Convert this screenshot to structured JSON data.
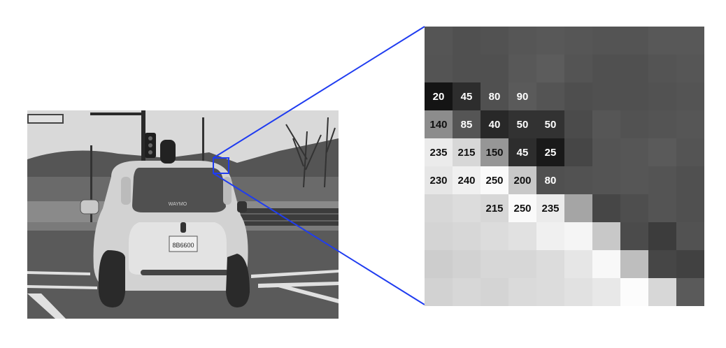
{
  "colors": {
    "highlight": "#1f3cf0",
    "value_text_dark": "#111111",
    "value_text_light": "#ffffff"
  },
  "photo": {
    "description_icon": "self-driving-car-photo",
    "plate_text": "8B6600",
    "brand_text": "WAYMO"
  },
  "zoom_grid": {
    "rows": [
      [
        {
          "g": 85
        },
        {
          "g": 80
        },
        {
          "g": 82
        },
        {
          "g": 86
        },
        {
          "g": 88
        },
        {
          "g": 86
        },
        {
          "g": 84
        },
        {
          "g": 84
        },
        {
          "g": 88
        },
        {
          "g": 88
        }
      ],
      [
        {
          "g": 84
        },
        {
          "g": 80
        },
        {
          "g": 80
        },
        {
          "g": 88
        },
        {
          "g": 92
        },
        {
          "g": 84
        },
        {
          "g": 80
        },
        {
          "g": 80
        },
        {
          "g": 84
        },
        {
          "g": 86
        }
      ],
      [
        {
          "g": 20,
          "v": "20"
        },
        {
          "g": 45,
          "v": "45"
        },
        {
          "g": 80,
          "v": "80"
        },
        {
          "g": 90,
          "v": "90"
        },
        {
          "g": 84
        },
        {
          "g": 78
        },
        {
          "g": 80
        },
        {
          "g": 80
        },
        {
          "g": 82
        },
        {
          "g": 84
        }
      ],
      [
        {
          "g": 140,
          "v": "140"
        },
        {
          "g": 85,
          "v": "85"
        },
        {
          "g": 40,
          "v": "40"
        },
        {
          "g": 50,
          "v": "50"
        },
        {
          "g": 50,
          "v": "50"
        },
        {
          "g": 75
        },
        {
          "g": 86
        },
        {
          "g": 82
        },
        {
          "g": 84
        },
        {
          "g": 86
        }
      ],
      [
        {
          "g": 235,
          "v": "235"
        },
        {
          "g": 215,
          "v": "215"
        },
        {
          "g": 150,
          "v": "150"
        },
        {
          "g": 45,
          "v": "45"
        },
        {
          "g": 25,
          "v": "25"
        },
        {
          "g": 70
        },
        {
          "g": 84
        },
        {
          "g": 86
        },
        {
          "g": 90
        },
        {
          "g": 84
        }
      ],
      [
        {
          "g": 230,
          "v": "230"
        },
        {
          "g": 240,
          "v": "240"
        },
        {
          "g": 250,
          "v": "250"
        },
        {
          "g": 200,
          "v": "200"
        },
        {
          "g": 80,
          "v": "80"
        },
        {
          "g": 82
        },
        {
          "g": 84
        },
        {
          "g": 86
        },
        {
          "g": 84
        },
        {
          "g": 80
        }
      ],
      [
        {
          "g": 215
        },
        {
          "g": 220
        },
        {
          "g": 215,
          "v": "215"
        },
        {
          "g": 250,
          "v": "250"
        },
        {
          "g": 235,
          "v": "235"
        },
        {
          "g": 165
        },
        {
          "g": 70
        },
        {
          "g": 78
        },
        {
          "g": 84
        },
        {
          "g": 80
        }
      ],
      [
        {
          "g": 212
        },
        {
          "g": 215
        },
        {
          "g": 220
        },
        {
          "g": 225
        },
        {
          "g": 240
        },
        {
          "g": 245
        },
        {
          "g": 200
        },
        {
          "g": 75
        },
        {
          "g": 60
        },
        {
          "g": 82
        }
      ],
      [
        {
          "g": 205
        },
        {
          "g": 210
        },
        {
          "g": 215
        },
        {
          "g": 215
        },
        {
          "g": 220
        },
        {
          "g": 230
        },
        {
          "g": 248
        },
        {
          "g": 190
        },
        {
          "g": 70
        },
        {
          "g": 65
        }
      ],
      [
        {
          "g": 210
        },
        {
          "g": 215
        },
        {
          "g": 212
        },
        {
          "g": 218
        },
        {
          "g": 220
        },
        {
          "g": 225
        },
        {
          "g": 232
        },
        {
          "g": 252
        },
        {
          "g": 215
        },
        {
          "g": 90
        }
      ]
    ]
  }
}
